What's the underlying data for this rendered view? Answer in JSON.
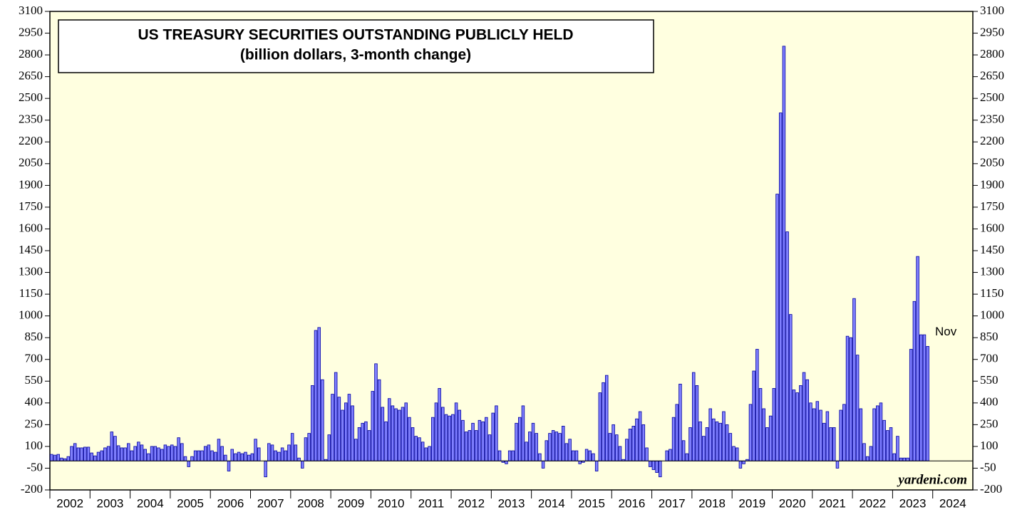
{
  "chart_data": {
    "type": "bar",
    "title": "US TREASURY SECURITIES OUTSTANDING PUBLICLY HELD",
    "subtitle": "(billion dollars, 3-month change)",
    "annotations": [
      "Nov",
      "yardeni.com"
    ],
    "color": "#8080ff",
    "edge_color": "#0000a0",
    "background": "#ffffe0",
    "ylim": [
      -200,
      3100
    ],
    "yticks": [
      -200,
      -50,
      100,
      250,
      400,
      550,
      700,
      850,
      1000,
      1150,
      1300,
      1450,
      1600,
      1750,
      1900,
      2050,
      2200,
      2350,
      2500,
      2650,
      2800,
      2950,
      3100
    ],
    "categories": [
      "2002",
      null,
      null,
      null,
      null,
      null,
      null,
      null,
      null,
      null,
      null,
      null,
      "2003",
      null,
      null,
      null,
      null,
      null,
      null,
      null,
      null,
      null,
      null,
      null,
      "2004",
      null,
      null,
      null,
      null,
      null,
      null,
      null,
      null,
      null,
      null,
      null,
      "2005",
      null,
      null,
      null,
      null,
      null,
      null,
      null,
      null,
      null,
      null,
      null,
      "2006",
      null,
      null,
      null,
      null,
      null,
      null,
      null,
      null,
      null,
      null,
      null,
      "2007",
      null,
      null,
      null,
      null,
      null,
      null,
      null,
      null,
      null,
      null,
      null,
      "2008",
      null,
      null,
      null,
      null,
      null,
      null,
      null,
      null,
      null,
      null,
      null,
      "2009",
      null,
      null,
      null,
      null,
      null,
      null,
      null,
      null,
      null,
      null,
      null,
      "2010",
      null,
      null,
      null,
      null,
      null,
      null,
      null,
      null,
      null,
      null,
      null,
      "2011",
      null,
      null,
      null,
      null,
      null,
      null,
      null,
      null,
      null,
      null,
      null,
      "2012",
      null,
      null,
      null,
      null,
      null,
      null,
      null,
      null,
      null,
      null,
      null,
      "2013",
      null,
      null,
      null,
      null,
      null,
      null,
      null,
      null,
      null,
      null,
      null,
      "2014",
      null,
      null,
      null,
      null,
      null,
      null,
      null,
      null,
      null,
      null,
      null,
      "2015",
      null,
      null,
      null,
      null,
      null,
      null,
      null,
      null,
      null,
      null,
      null,
      "2016",
      null,
      null,
      null,
      null,
      null,
      null,
      null,
      null,
      null,
      null,
      null,
      "2017",
      null,
      null,
      null,
      null,
      null,
      null,
      null,
      null,
      null,
      null,
      null,
      "2018",
      null,
      null,
      null,
      null,
      null,
      null,
      null,
      null,
      null,
      null,
      null,
      "2019",
      null,
      null,
      null,
      null,
      null,
      null,
      null,
      null,
      null,
      null,
      null,
      "2020",
      null,
      null,
      null,
      null,
      null,
      null,
      null,
      null,
      null,
      null,
      null,
      "2021",
      null,
      null,
      null,
      null,
      null,
      null,
      null,
      null,
      null,
      null,
      null,
      "2022",
      null,
      null,
      null,
      null,
      null,
      null,
      null,
      null,
      null,
      null,
      null,
      "2023",
      null,
      null,
      null,
      null,
      null,
      null,
      null,
      null,
      null,
      null,
      null,
      "2024",
      null,
      null,
      null,
      null,
      null,
      null,
      null,
      null,
      null,
      null,
      null
    ],
    "values": [
      45,
      40,
      45,
      20,
      15,
      30,
      100,
      120,
      90,
      90,
      95,
      95,
      55,
      35,
      60,
      70,
      90,
      100,
      200,
      170,
      105,
      90,
      90,
      120,
      70,
      100,
      130,
      110,
      80,
      50,
      100,
      100,
      90,
      80,
      110,
      100,
      110,
      100,
      160,
      120,
      30,
      -40,
      30,
      70,
      70,
      70,
      100,
      110,
      70,
      60,
      150,
      100,
      40,
      -70,
      80,
      50,
      60,
      50,
      60,
      40,
      50,
      150,
      90,
      0,
      -110,
      120,
      110,
      70,
      60,
      90,
      70,
      110,
      190,
      110,
      20,
      -50,
      160,
      190,
      520,
      900,
      920,
      560,
      10,
      180,
      460,
      610,
      440,
      350,
      400,
      460,
      380,
      150,
      230,
      260,
      270,
      210,
      480,
      670,
      560,
      370,
      270,
      430,
      380,
      360,
      350,
      370,
      400,
      300,
      230,
      170,
      160,
      130,
      90,
      100,
      300,
      400,
      500,
      370,
      320,
      310,
      320,
      400,
      350,
      280,
      200,
      210,
      260,
      210,
      280,
      270,
      300,
      180,
      330,
      380,
      70,
      -10,
      -20,
      70,
      70,
      260,
      300,
      380,
      130,
      200,
      260,
      190,
      50,
      -50,
      140,
      190,
      210,
      200,
      190,
      240,
      120,
      150,
      70,
      70,
      -20,
      -10,
      80,
      70,
      50,
      -70,
      470,
      540,
      590,
      190,
      250,
      180,
      100,
      10,
      150,
      220,
      240,
      290,
      340,
      250,
      90,
      -40,
      -60,
      -80,
      -110,
      0,
      70,
      80,
      300,
      390,
      530,
      140,
      50,
      230,
      610,
      520,
      270,
      170,
      230,
      360,
      290,
      270,
      260,
      340,
      250,
      190,
      100,
      90,
      -50,
      -20,
      10,
      390,
      620,
      770,
      500,
      360,
      230,
      310,
      500,
      1840,
      2400,
      2860,
      1580,
      1010,
      490,
      470,
      520,
      610,
      560,
      400,
      360,
      410,
      350,
      260,
      340,
      230,
      230,
      -50,
      350,
      390,
      860,
      850,
      1120,
      730,
      360,
      120,
      30,
      100,
      360,
      380,
      400,
      280,
      210,
      230,
      50,
      170,
      20,
      20,
      20,
      770,
      1100,
      1410,
      870,
      870,
      790,
      null,
      null,
      null,
      null,
      null,
      null,
      null,
      null,
      null,
      null,
      null,
      null,
      null
    ]
  }
}
